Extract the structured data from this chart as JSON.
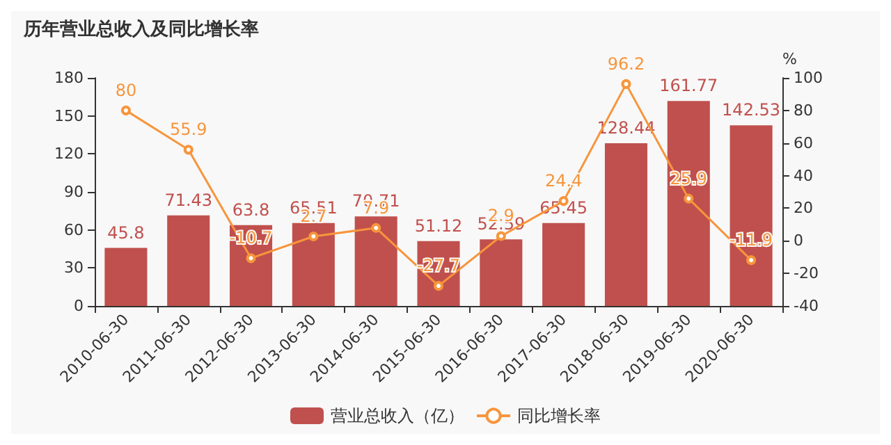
{
  "chart_data": {
    "type": "bar",
    "title": "历年营业总收入及同比增长率",
    "categories": [
      "2010-06-30",
      "2011-06-30",
      "2012-06-30",
      "2013-06-30",
      "2014-06-30",
      "2015-06-30",
      "2016-06-30",
      "2017-06-30",
      "2018-06-30",
      "2019-06-30",
      "2020-06-30"
    ],
    "series": [
      {
        "name": "营业总收入（亿）",
        "color": "#c0504d",
        "values": [
          45.8,
          71.43,
          63.8,
          65.51,
          70.71,
          51.12,
          52.59,
          65.45,
          128.44,
          161.77,
          142.53
        ]
      },
      {
        "name": "同比增长率",
        "type": "line",
        "axis": "y2",
        "color": "#f7953b",
        "marker": "circle",
        "values": [
          80,
          55.9,
          -10.7,
          2.7,
          7.9,
          -27.7,
          2.9,
          24.4,
          96.2,
          25.9,
          -11.9
        ]
      }
    ],
    "y2label": "%",
    "ylim": [
      0,
      180
    ],
    "yticks": [
      0,
      30,
      60,
      90,
      120,
      150,
      180
    ],
    "y2lim": [
      -40,
      100
    ],
    "y2ticks": [
      -40,
      -20,
      0,
      20,
      40,
      60,
      80,
      100
    ],
    "data_labels": true,
    "grid": false,
    "legend": "bottom"
  }
}
